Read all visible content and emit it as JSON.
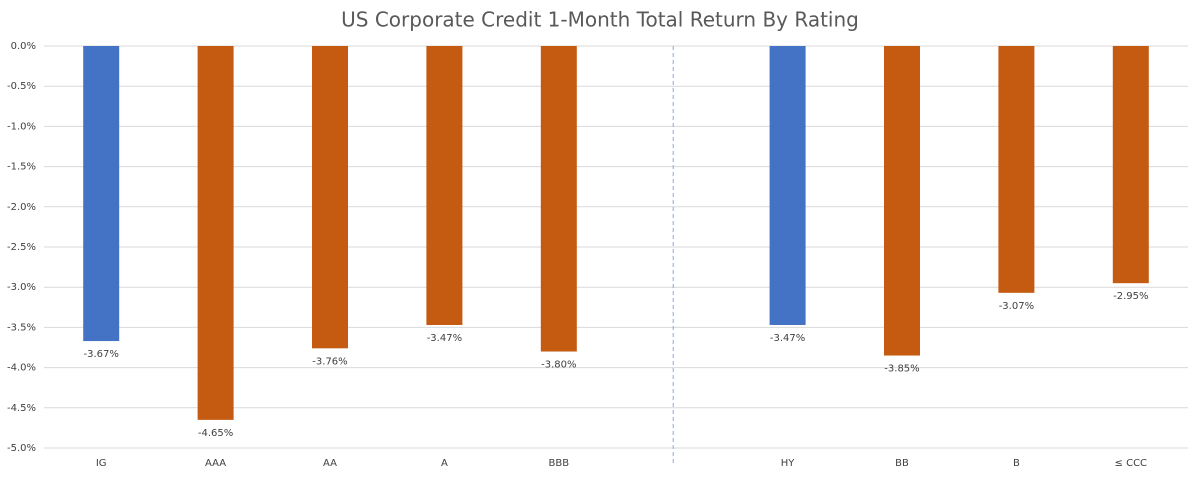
{
  "chart_data": {
    "type": "bar",
    "title": "US Corporate Credit 1-Month Total Return By Rating",
    "categories": [
      "IG",
      "AAA",
      "AA",
      "A",
      "BBB",
      null,
      "HY",
      "BB",
      "B",
      "≤ CCC"
    ],
    "values": [
      -3.67,
      -4.65,
      -3.76,
      -3.47,
      -3.8,
      null,
      -3.47,
      -3.85,
      -3.07,
      -2.95
    ],
    "value_labels": [
      "-3.67%",
      "-4.65%",
      "-3.76%",
      "-3.47%",
      "-3.80%",
      null,
      "-3.47%",
      "-3.85%",
      "-3.07%",
      "-2.95%"
    ],
    "colors": [
      "#4472c4",
      "#c55a11",
      "#c55a11",
      "#c55a11",
      "#c55a11",
      null,
      "#4472c4",
      "#c55a11",
      "#c55a11",
      "#c55a11"
    ],
    "ylim": [
      -5.0,
      0.0
    ],
    "yticks": [
      {
        "value": 0.0,
        "label": "0.0%"
      },
      {
        "value": -0.5,
        "label": "-0.5%"
      },
      {
        "value": -1.0,
        "label": "-1.0%"
      },
      {
        "value": -1.5,
        "label": "-1.5%"
      },
      {
        "value": -2.0,
        "label": "-2.0%"
      },
      {
        "value": -2.5,
        "label": "-2.5%"
      },
      {
        "value": -3.0,
        "label": "-3.0%"
      },
      {
        "value": -3.5,
        "label": "-3.5%"
      },
      {
        "value": -4.0,
        "label": "-4.0%"
      },
      {
        "value": -4.5,
        "label": "-4.5%"
      },
      {
        "value": -5.0,
        "label": "-5.0%"
      }
    ],
    "grid": true
  }
}
